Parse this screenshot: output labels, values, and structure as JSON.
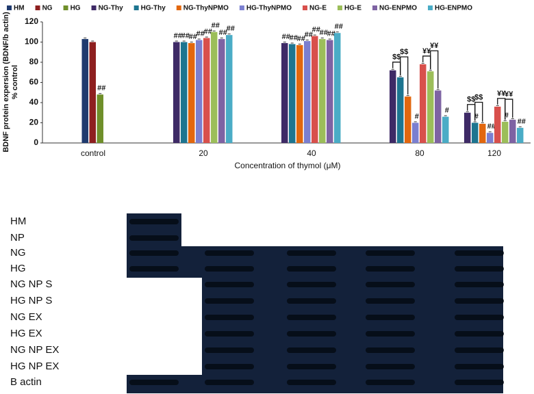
{
  "chart_data": {
    "type": "bar",
    "ylabel": "BDNF protein expersion (BDNF/b actin)",
    "ylabel2": "% control",
    "xlabel": "Concentration of thymol (μM)",
    "categories": [
      "control",
      "20",
      "40",
      "80",
      "120"
    ],
    "ylim": [
      0,
      120
    ],
    "yticks": [
      0,
      20,
      40,
      60,
      80,
      100,
      120
    ],
    "series": [
      {
        "name": "HM",
        "color": "#1f3a6e",
        "values": [
          103,
          null,
          null,
          null,
          null
        ],
        "significance": [
          null,
          null,
          null,
          null,
          null
        ]
      },
      {
        "name": "NG",
        "color": "#8e1f1f",
        "values": [
          100,
          null,
          null,
          null,
          null
        ],
        "significance": [
          null,
          null,
          null,
          null,
          null
        ]
      },
      {
        "name": "HG",
        "color": "#6f8f2a",
        "values": [
          48,
          null,
          null,
          null,
          null
        ],
        "significance": [
          "##",
          null,
          null,
          null,
          null
        ]
      },
      {
        "name": "NG-Thy",
        "color": "#3e2a66",
        "values": [
          null,
          100,
          99,
          72,
          30
        ],
        "significance": [
          null,
          "##",
          "##",
          null,
          null
        ]
      },
      {
        "name": "HG-Thy",
        "color": "#1d7590",
        "values": [
          null,
          100,
          98,
          65,
          20
        ],
        "significance": [
          null,
          "##",
          "##",
          null,
          "#"
        ]
      },
      {
        "name": "NG-ThyNPMO",
        "color": "#e2670e",
        "values": [
          null,
          99,
          97,
          46,
          19
        ],
        "significance": [
          null,
          "##",
          "##",
          null,
          null
        ]
      },
      {
        "name": "HG-ThyNPMO",
        "color": "#7b7fd0",
        "values": [
          null,
          102,
          101,
          20,
          10
        ],
        "significance": [
          null,
          "##",
          "##",
          "#",
          "##"
        ]
      },
      {
        "name": "NG-E",
        "color": "#d8504c",
        "values": [
          null,
          104,
          106,
          78,
          36
        ],
        "significance": [
          null,
          "##",
          "##",
          null,
          null
        ]
      },
      {
        "name": "HG-E",
        "color": "#9cbe5a",
        "values": [
          null,
          110,
          103,
          71,
          21
        ],
        "significance": [
          null,
          "##",
          "##",
          null,
          "#"
        ]
      },
      {
        "name": "NG-ENPMO",
        "color": "#7e63a3",
        "values": [
          null,
          103,
          102,
          52,
          23
        ],
        "significance": [
          null,
          "##",
          "##",
          null,
          null
        ]
      },
      {
        "name": "HG-ENPMO",
        "color": "#4aacc6",
        "values": [
          null,
          107,
          109,
          26,
          15
        ],
        "significance": [
          null,
          "##",
          "##",
          "#",
          "##"
        ]
      }
    ],
    "bracket_labels": [
      "$$",
      "$$",
      "¥¥",
      "¥¥",
      "$$",
      "$$",
      "¥¥",
      "¥¥"
    ]
  },
  "blot": {
    "rows": [
      "HM",
      "NP",
      "NG",
      "HG",
      "NG NP S",
      "HG NP S",
      "NG EX",
      "HG EX",
      "NG NP EX",
      "HG NP EX",
      "B actin"
    ]
  }
}
